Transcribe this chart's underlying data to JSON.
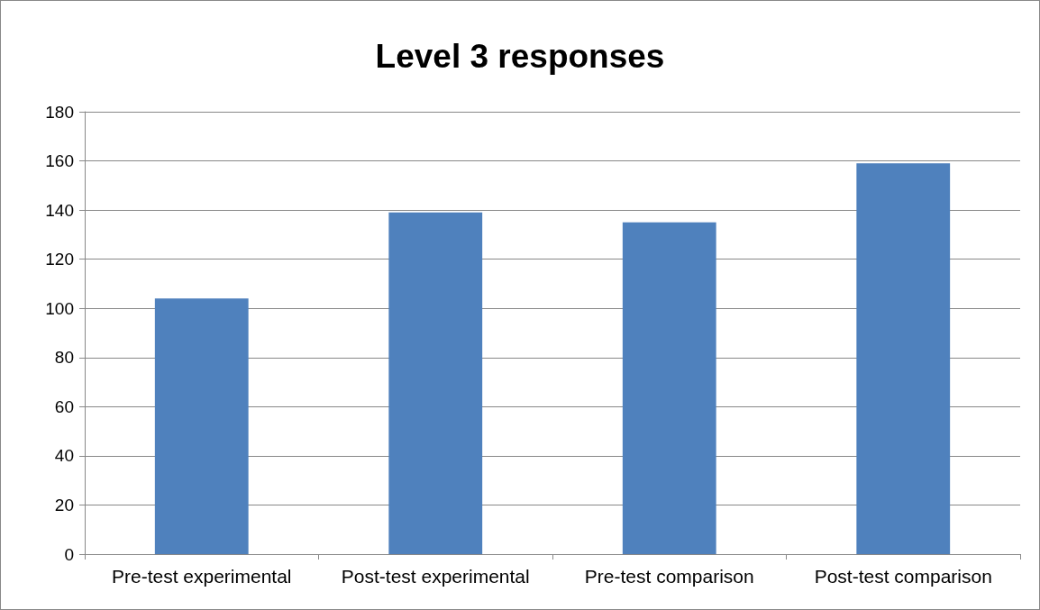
{
  "chart_data": {
    "type": "bar",
    "title": "Level 3 responses",
    "categories": [
      "Pre-test experimental",
      "Post-test experimental",
      "Pre-test comparison",
      "Post-test comparison"
    ],
    "values": [
      104,
      139,
      135,
      159
    ],
    "color": "#4f81bd",
    "ylim": [
      0,
      180
    ],
    "yticks": [
      0,
      20,
      40,
      60,
      80,
      100,
      120,
      140,
      160,
      180
    ],
    "grid": "y"
  }
}
